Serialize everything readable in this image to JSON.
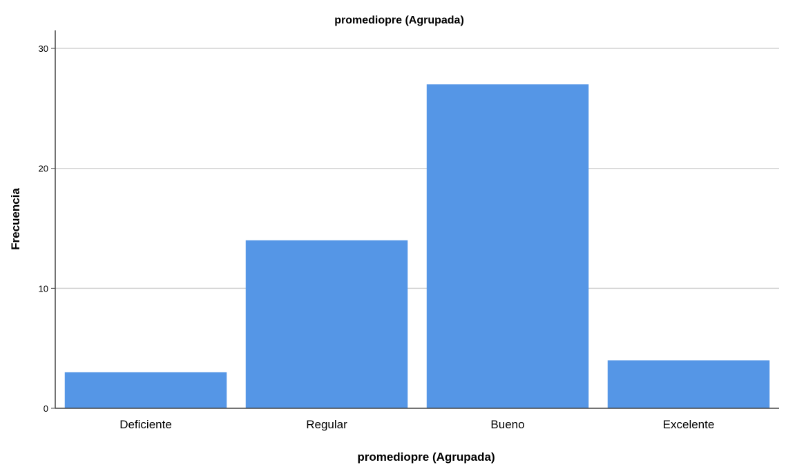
{
  "chart_data": {
    "type": "bar",
    "title": "promediopre (Agrupada)",
    "xlabel": "promediopre (Agrupada)",
    "ylabel": "Frecuencia",
    "categories": [
      "Deficiente",
      "Regular",
      "Bueno",
      "Excelente"
    ],
    "values": [
      3,
      14,
      27,
      4
    ],
    "ylim": [
      0,
      31.5
    ],
    "yticks": [
      0,
      10,
      20,
      30
    ],
    "grid": true,
    "legend": "none",
    "colors": {
      "bar": "#5596e6",
      "grid": "#d2d2d2",
      "axis": "#444444"
    }
  }
}
